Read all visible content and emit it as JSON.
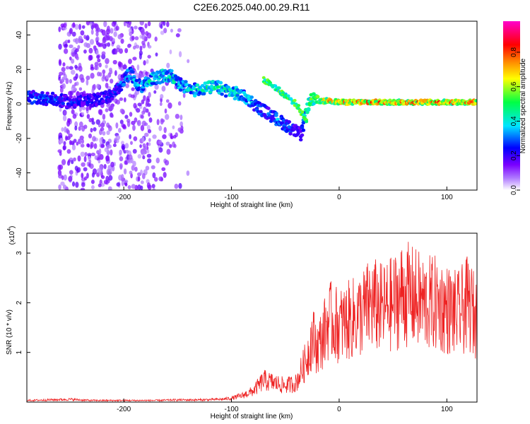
{
  "title": "C2E6.2025.040.00.29.R11",
  "chart_data": [
    {
      "type": "heatmap",
      "xlabel": "Height of straight line (km)",
      "ylabel": "Frequency (Hz)",
      "xlim": [
        -290,
        128
      ],
      "ylim": [
        -50,
        48
      ],
      "xticks": [
        -200,
        -100,
        0,
        100
      ],
      "yticks": [
        -40,
        -20,
        0,
        20,
        40
      ],
      "colorbar": {
        "label": "Normalized spectral amplitude",
        "range": [
          0.0,
          0.98
        ],
        "ticks": [
          0.0,
          0.2,
          0.4,
          0.6,
          0.8
        ],
        "colormap": [
          "#ffffff",
          "#7a00ff",
          "#0000ff",
          "#00e5ff",
          "#00ff44",
          "#ffff00",
          "#ff8800",
          "#ff0000",
          "#ff00cc"
        ]
      },
      "ridge": {
        "x": [
          -290,
          -270,
          -250,
          -230,
          -210,
          -195,
          -185,
          -175,
          -165,
          -155,
          -145,
          -135,
          -125,
          -115,
          -105,
          -95,
          -85,
          -75,
          -65,
          -55,
          -45,
          -35,
          -30,
          -25,
          -20,
          -10,
          0,
          20,
          40,
          60,
          80,
          100,
          128
        ],
        "y": [
          4,
          3,
          1,
          2,
          5,
          18,
          10,
          14,
          16,
          16,
          10,
          8,
          9,
          10,
          8,
          6,
          3,
          -2,
          -6,
          -10,
          -14,
          -18,
          -2,
          3,
          1,
          2,
          1,
          1,
          1,
          1,
          1,
          1,
          1
        ],
        "amplitude": [
          0.35,
          0.35,
          0.3,
          0.3,
          0.3,
          0.45,
          0.4,
          0.5,
          0.55,
          0.55,
          0.45,
          0.5,
          0.55,
          0.55,
          0.5,
          0.5,
          0.45,
          0.4,
          0.35,
          0.4,
          0.35,
          0.3,
          0.6,
          0.7,
          0.8,
          0.85,
          0.85,
          0.9,
          0.9,
          0.9,
          0.9,
          0.9,
          0.9
        ]
      },
      "branch": {
        "x": [
          -70,
          -60,
          -50,
          -40,
          -35,
          -30
        ],
        "y": [
          14,
          10,
          5,
          0,
          -5,
          -10
        ]
      }
    },
    {
      "type": "line",
      "xlabel": "Height of straight line (km)",
      "ylabel": "SNR (10 * v/v)",
      "yscale_label": "(x10",
      "yscale_exp": "4",
      "xlim": [
        -290,
        128
      ],
      "ylim": [
        0,
        3.4
      ],
      "xticks": [
        -200,
        -100,
        0,
        100
      ],
      "yticks": [
        1,
        2,
        3
      ],
      "color": "#ee2222",
      "x": [
        -290,
        -270,
        -250,
        -230,
        -210,
        -190,
        -170,
        -150,
        -130,
        -110,
        -100,
        -90,
        -80,
        -70,
        -60,
        -50,
        -40,
        -30,
        -25,
        -20,
        -15,
        -10,
        0,
        10,
        20,
        30,
        40,
        50,
        60,
        70,
        80,
        90,
        100,
        110,
        120,
        128
      ],
      "y": [
        0.03,
        0.04,
        0.05,
        0.03,
        0.03,
        0.03,
        0.03,
        0.04,
        0.04,
        0.05,
        0.07,
        0.12,
        0.2,
        0.4,
        0.35,
        0.3,
        0.35,
        0.8,
        1.2,
        1.0,
        1.2,
        1.5,
        1.4,
        1.5,
        1.6,
        1.8,
        1.7,
        1.8,
        2.0,
        1.9,
        1.8,
        1.8,
        1.7,
        1.6,
        1.8,
        1.5
      ]
    }
  ]
}
